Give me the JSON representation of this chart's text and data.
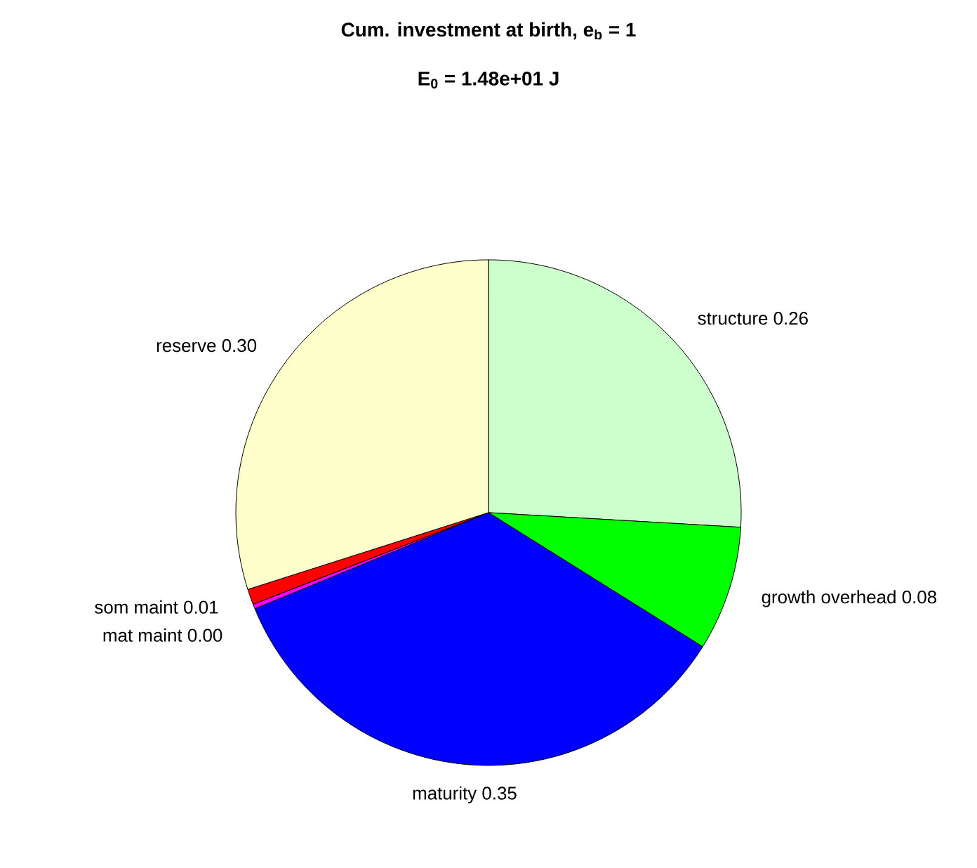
{
  "chart_data": {
    "type": "pie",
    "title": "Cum. investment at birth, e$_{b}$ = 1",
    "subtitle": "E$_{0}$ = 1.48e+01 J",
    "categories": [
      "structure",
      "growth overhead",
      "maturity",
      "mat maint",
      "som maint",
      "reserve"
    ],
    "values": [
      0.26,
      0.08,
      0.35,
      0.003,
      0.01,
      0.3
    ],
    "value_labels": [
      "0.26",
      "0.08",
      "0.35",
      "0.00",
      "0.01",
      "0.30"
    ],
    "colors": [
      "#ccffcc",
      "#00ff00",
      "#0000ff",
      "#ff00ff",
      "#ff0000",
      "#ffffcc"
    ]
  }
}
